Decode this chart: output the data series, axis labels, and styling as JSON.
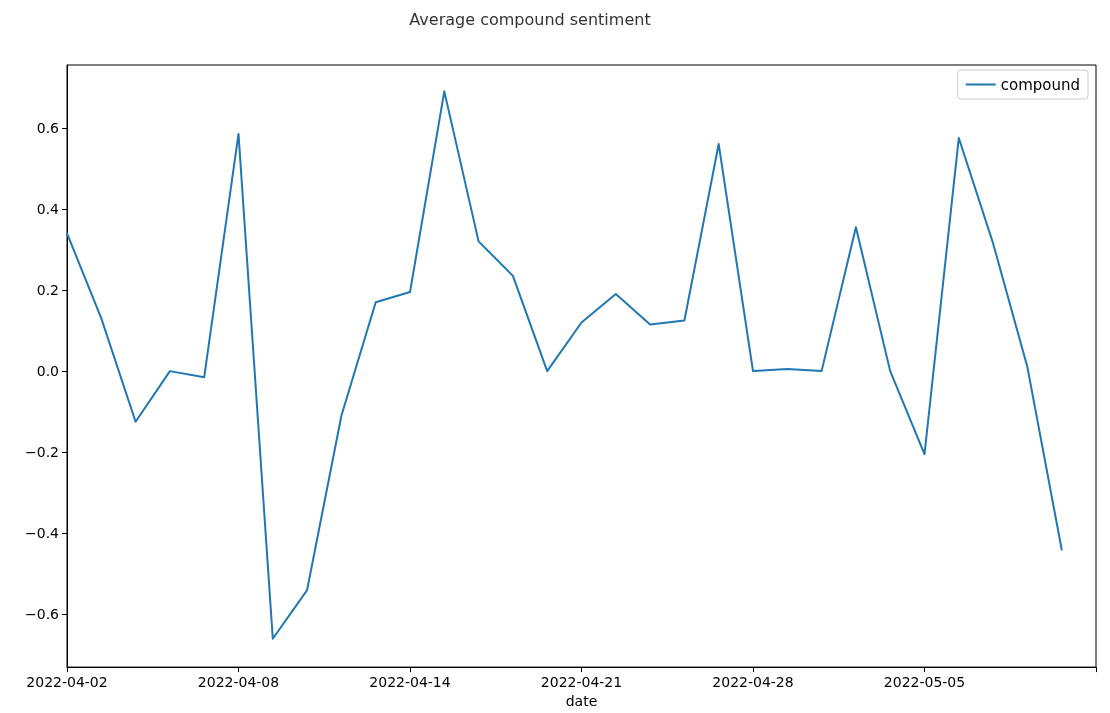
{
  "chart_data": {
    "type": "line",
    "title": "Average compound sentiment",
    "xlabel": "date",
    "categories": [
      "2022-04-02",
      null,
      null,
      null,
      null,
      "2022-04-08",
      null,
      null,
      null,
      null,
      "2022-04-14",
      null,
      null,
      null,
      null,
      "2022-04-21",
      null,
      null,
      null,
      null,
      "2022-04-28",
      null,
      null,
      null,
      null,
      "2022-05-05",
      null,
      null,
      null,
      null,
      null
    ],
    "series": [
      {
        "name": "compound",
        "color": "#1f77b4",
        "values": [
          0.34,
          0.13,
          -0.125,
          0.0,
          -0.015,
          0.585,
          -0.66,
          -0.54,
          -0.11,
          0.17,
          0.195,
          0.69,
          0.32,
          0.235,
          0.0,
          0.12,
          0.19,
          0.115,
          0.125,
          0.56,
          0.0,
          0.005,
          0.0,
          0.355,
          0.0,
          -0.205,
          0.575,
          0.315,
          0.01,
          -0.44,
          null
        ]
      }
    ],
    "ylim": [
      -0.73,
      0.755
    ],
    "yticks": [
      {
        "value": -0.6,
        "label": "−0.6"
      },
      {
        "value": -0.4,
        "label": "−0.4"
      },
      {
        "value": -0.2,
        "label": "−0.2"
      },
      {
        "value": 0,
        "label": "0.0"
      },
      {
        "value": 0.2,
        "label": "0.2"
      },
      {
        "value": 0.4,
        "label": "0.4"
      },
      {
        "value": 0.6,
        "label": "0.6"
      }
    ],
    "legend": "top right",
    "grid": false,
    "marker": "none",
    "line_style": "solid"
  }
}
